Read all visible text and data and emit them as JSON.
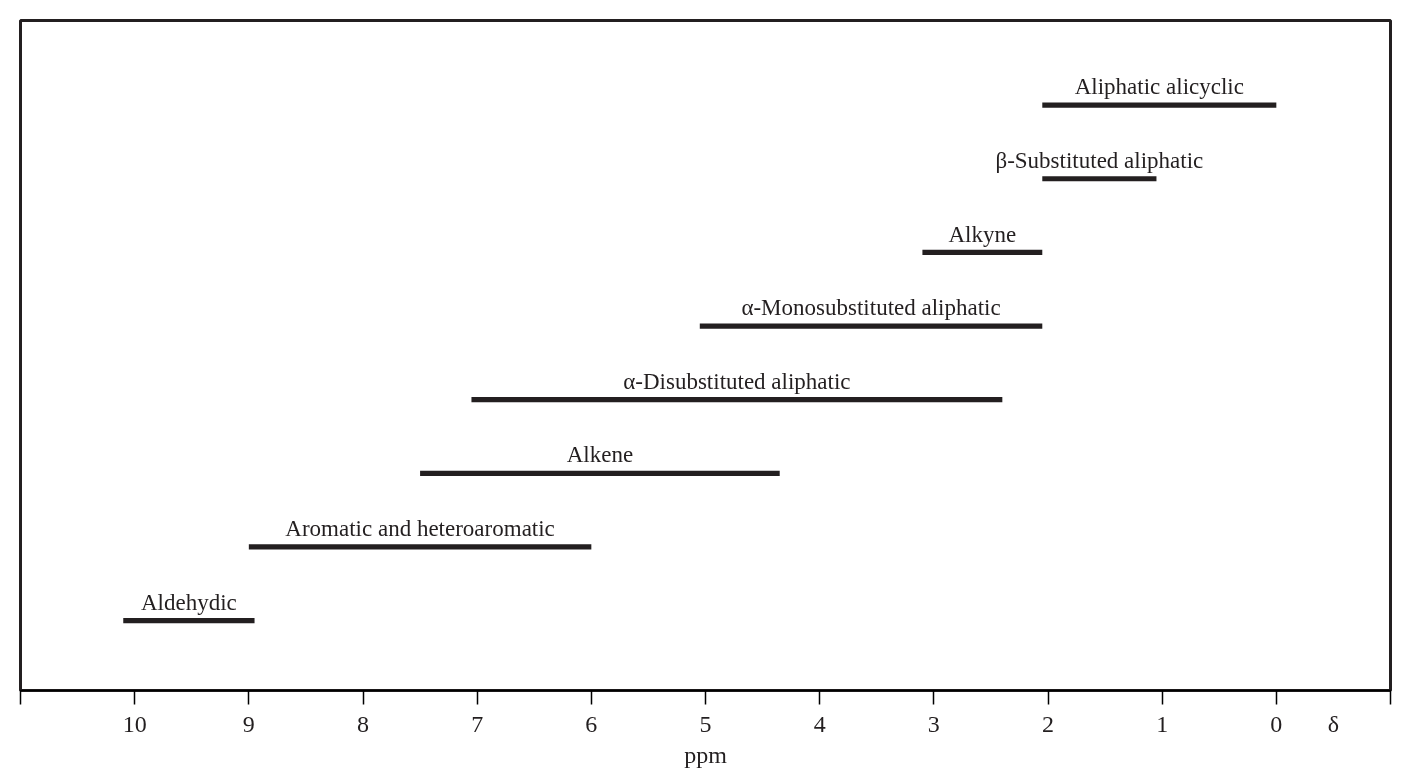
{
  "chart_data": {
    "type": "bar",
    "orientation": "horizontal",
    "xlabel": "ppm",
    "categories": [
      "Aliphatic alicyclic",
      "β-Substituted aliphatic",
      "Alkyne",
      "α-Monosubstituted aliphatic",
      "α-Disubstituted aliphatic",
      "Alkene",
      "Aromatic and heteroaromatic",
      "Aldehydic"
    ],
    "base": [
      0,
      1.05,
      2.05,
      2.05,
      2.4,
      4.35,
      6.0,
      8.95
    ],
    "values": [
      2.05,
      1.0,
      1.05,
      3.0,
      4.65,
      3.15,
      3.0,
      1.15
    ],
    "color": "#231f20",
    "xlim": [
      11,
      -1
    ],
    "xticks": [
      {
        "value": 11,
        "label": null
      },
      10,
      9,
      8,
      7,
      6,
      5,
      4,
      3,
      2,
      1,
      0,
      {
        "value": -1,
        "label": null
      }
    ],
    "annotations": [
      "δ"
    ],
    "tick_labels": "x",
    "grid": false
  }
}
